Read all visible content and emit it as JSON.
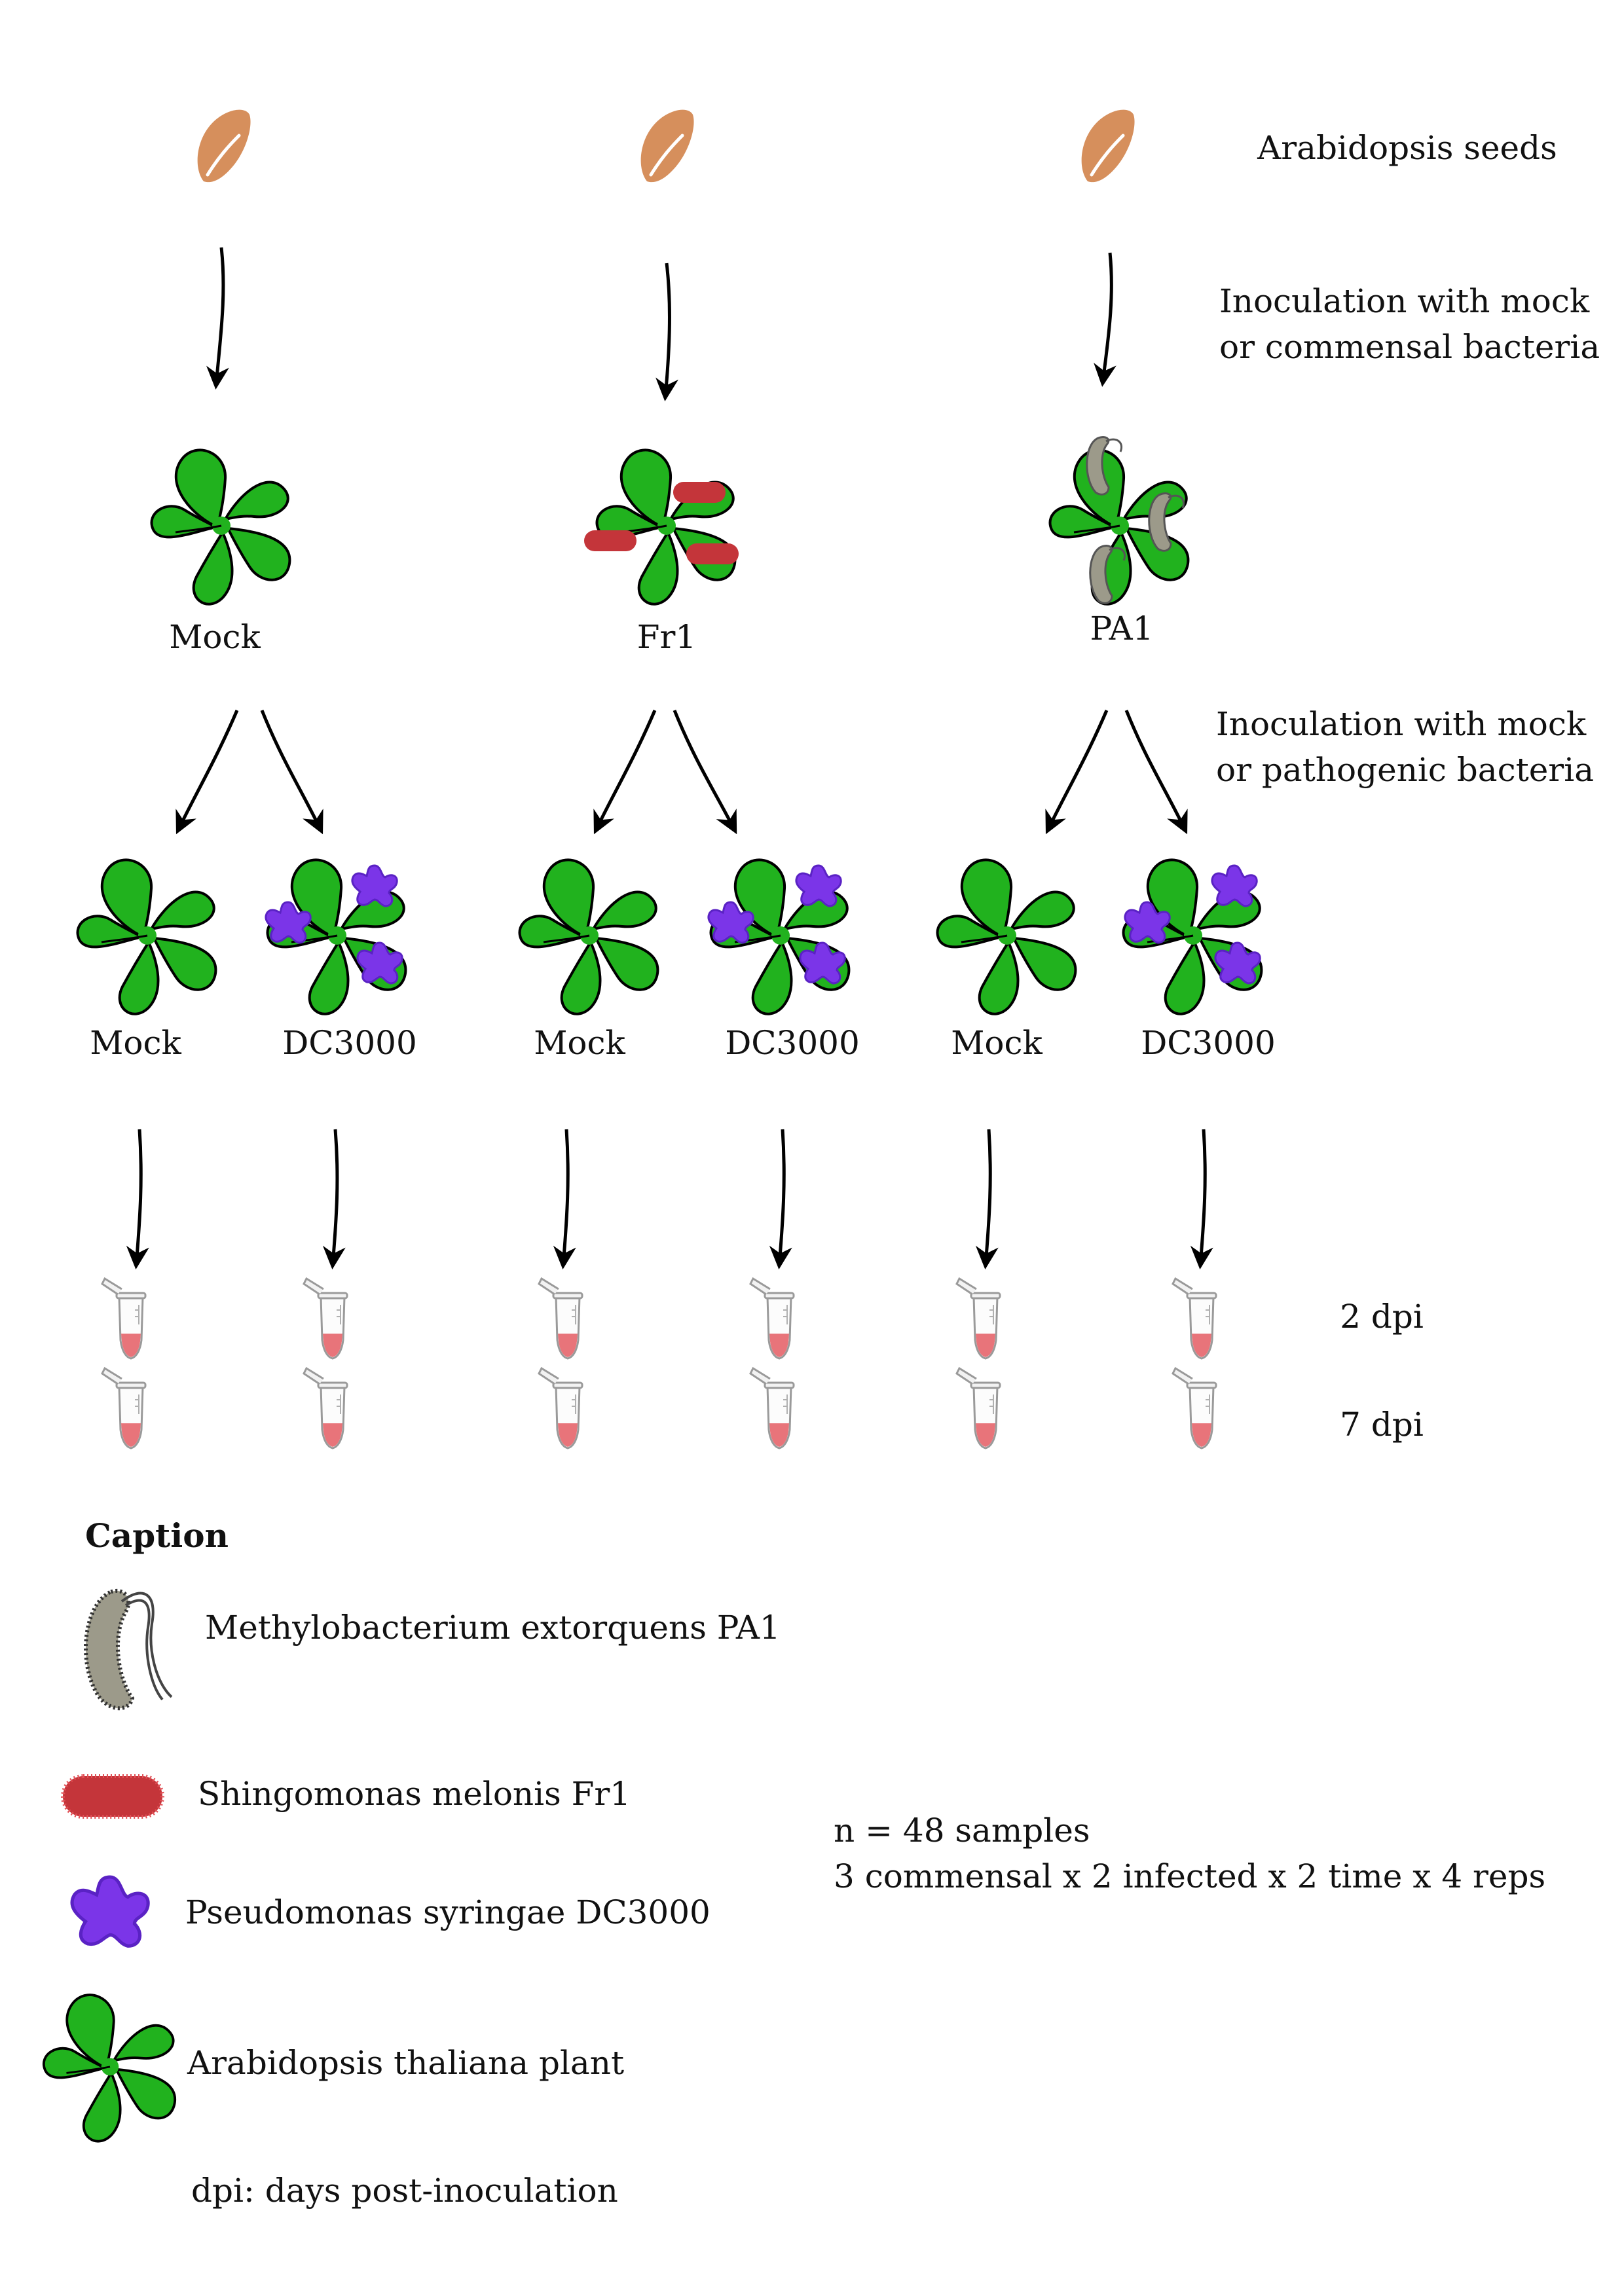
{
  "row_labels": {
    "seeds": "Arabidopsis seeds",
    "step1_line1": "Inoculation with mock",
    "step1_line2": "or commensal bacteria",
    "step2_line1": "Inoculation with mock",
    "step2_line2": "or pathogenic bacteria",
    "time1": "2 dpi",
    "time2": "7 dpi"
  },
  "columns": [
    {
      "label": "Mock",
      "bacteria": "none",
      "children": [
        {
          "label": "Mock",
          "pathogen": false
        },
        {
          "label": "DC3000",
          "pathogen": true
        }
      ]
    },
    {
      "label": "Fr1",
      "bacteria": "fr1",
      "children": [
        {
          "label": "Mock",
          "pathogen": false
        },
        {
          "label": "DC3000",
          "pathogen": true
        }
      ]
    },
    {
      "label": "PA1",
      "bacteria": "pa1",
      "children": [
        {
          "label": "Mock",
          "pathogen": false
        },
        {
          "label": "DC3000",
          "pathogen": true
        }
      ]
    }
  ],
  "caption": {
    "title": "Caption",
    "items": [
      {
        "icon": "methylobacterium-icon",
        "label": "Methylobacterium extorquens PA1"
      },
      {
        "icon": "sphingomonas-icon",
        "label": "Shingomonas melonis Fr1"
      },
      {
        "icon": "pseudomonas-icon",
        "label": "Pseudomonas syringae DC3000"
      },
      {
        "icon": "arabidopsis-plant-icon",
        "label": "Arabidopsis thaliana plant"
      }
    ],
    "footnote": "dpi: days post-inoculation"
  },
  "summary": {
    "line1": "n = 48 samples",
    "line2": "3 commensal x 2 infected x 2 time x 4 reps"
  },
  "colors": {
    "seed": "#D68F5C",
    "plant": "#21B21E",
    "fr1": "#C4353A",
    "pa1": "#9C9A8A",
    "pseudomonas": "#7B35E8",
    "tube_liquid": "#E8747A"
  }
}
